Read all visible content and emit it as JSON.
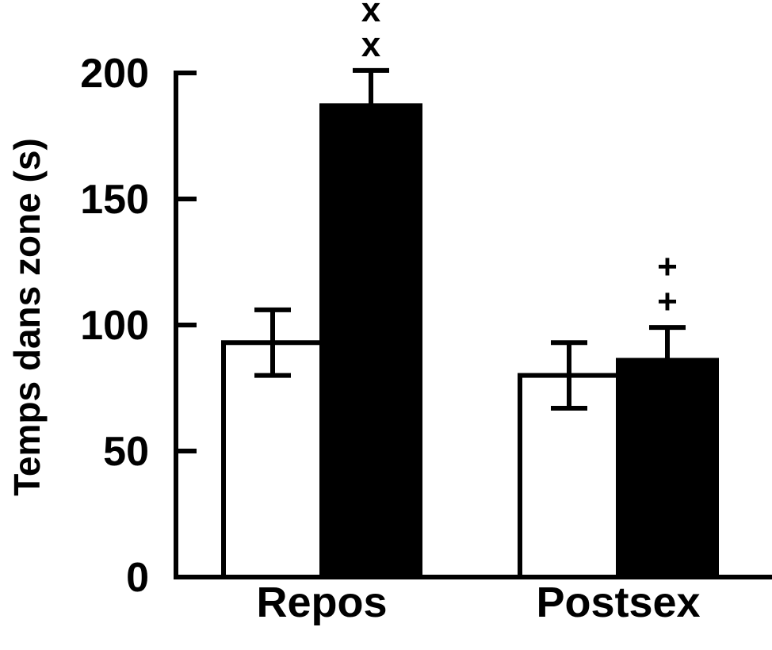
{
  "chart_data": {
    "type": "bar",
    "title": "",
    "xlabel": "",
    "ylabel": "Temps dans zone (s)",
    "ylim": [
      0,
      200
    ],
    "yticks": [
      0,
      50,
      100,
      150,
      200
    ],
    "grid": false,
    "categories": [
      "Repos",
      "Postsex"
    ],
    "series": [
      {
        "color": "#ffffff",
        "stroke": "#000000",
        "values": [
          93,
          80
        ],
        "errors": [
          13,
          13
        ]
      },
      {
        "color": "#000000",
        "stroke": "#000000",
        "values": [
          187,
          86
        ],
        "errors": [
          14,
          13
        ]
      }
    ],
    "annotations": [
      {
        "category_index": 0,
        "series_index": 1,
        "text": "x"
      },
      {
        "category_index": 0,
        "series_index": 1,
        "text": "x"
      },
      {
        "category_index": 1,
        "series_index": 1,
        "text": "+"
      },
      {
        "category_index": 1,
        "series_index": 1,
        "text": "+"
      }
    ]
  }
}
